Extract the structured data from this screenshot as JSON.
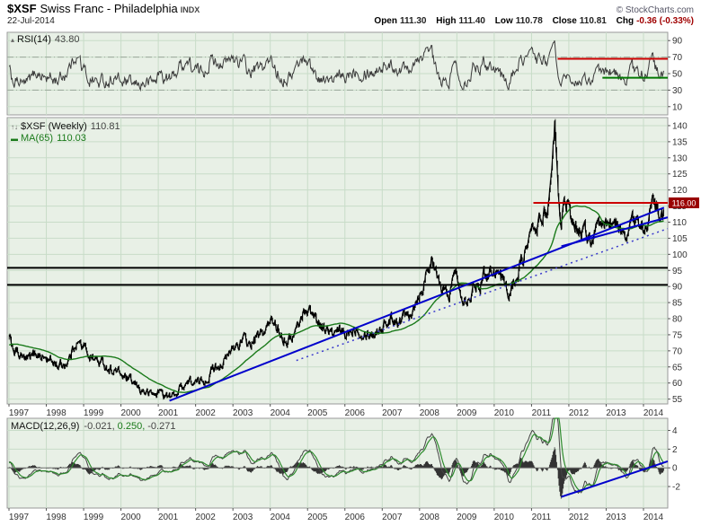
{
  "header": {
    "symbol": "$XSF",
    "name": "Swiss Franc - Philadelphia",
    "exchange": "INDX",
    "date": "22-Jul-2014",
    "copyright": "© StockCharts.com",
    "quote": {
      "open_label": "Open",
      "open": "111.30",
      "high_label": "High",
      "high": "111.40",
      "low_label": "Low",
      "low": "110.78",
      "close_label": "Close",
      "close": "110.81",
      "chg_label": "Chg",
      "chg": "-0.36 (-0.33%)"
    }
  },
  "icons": {
    "rsi_indicator": "▴",
    "price_series": "↑↓",
    "ma_line": "▬"
  },
  "panels": {
    "rsi": {
      "label": "RSI(14)",
      "value": "43.80"
    },
    "price": {
      "label": "$XSF (Weekly)",
      "value": "110.81",
      "ma_label": "MA(65)",
      "ma_value": "110.03"
    },
    "macd": {
      "label": "MACD(12,26,9)",
      "macd_value": "-0.021,",
      "signal_value": "0.250,",
      "hist_value": "-0.271"
    }
  },
  "chart_data": {
    "type": "line",
    "title": "$XSF Swiss Franc - Philadelphia INDX, Weekly, 1997-2014",
    "x_range": [
      1997.0,
      2014.65
    ],
    "x_ticks": [
      1997,
      1998,
      1999,
      2000,
      2001,
      2002,
      2003,
      2004,
      2005,
      2006,
      2007,
      2008,
      2009,
      2010,
      2011,
      2012,
      2013,
      2014
    ],
    "weekly_noise": 0.02,
    "colors": {
      "panel_bg": "#e8f0e6",
      "grid": "#c8dcc8",
      "panel_border": "#999999",
      "axis_text": "#333333",
      "price": "#000000",
      "ma": "#1a7a1a",
      "rsi": "#3a3a3a",
      "macd_line": "#444444",
      "signal": "#2e8b2e",
      "hist": "#333333",
      "blue": "#0000cc",
      "red": "#cc0000",
      "black": "#000000",
      "band_dash": "#9aa89a",
      "zero": "#777777",
      "red_box": "#990000"
    },
    "panels": [
      {
        "id": "rsi",
        "indicator": "RSI(14)",
        "last": 43.8,
        "ylim": [
          0,
          100
        ],
        "yticks": [
          90,
          70,
          50,
          30,
          10
        ],
        "overlays": [
          {
            "type": "hline",
            "y": 70,
            "style": "dashdot",
            "color": "#9aa89a",
            "w": 1
          },
          {
            "type": "hline",
            "y": 30,
            "style": "dashdot",
            "color": "#9aa89a",
            "w": 1
          },
          {
            "type": "segment",
            "x1": 2011.7,
            "y1": 68,
            "x2": 2014.65,
            "y2": 68,
            "color": "#cc0000",
            "w": 2
          },
          {
            "type": "segment",
            "x1": 2012.9,
            "y1": 45,
            "x2": 2014.65,
            "y2": 45,
            "color": "#007700",
            "w": 2
          }
        ]
      },
      {
        "id": "price",
        "series_name": "$XSF weekly close",
        "last": 110.81,
        "ma_period": 65,
        "ma_last": 110.03,
        "ylim": [
          53.5,
          142.5
        ],
        "yticks": [
          140,
          135,
          130,
          125,
          120,
          115,
          110,
          105,
          100,
          95,
          90,
          85,
          80,
          75,
          70,
          65,
          60,
          55
        ],
        "overlays": [
          {
            "type": "hline",
            "y": 95.8,
            "color": "#000000",
            "w": 2
          },
          {
            "type": "hline",
            "y": 90.5,
            "color": "#000000",
            "w": 2
          },
          {
            "type": "segment",
            "x1": 2004.7,
            "y1": 67.0,
            "x2": 2014.65,
            "y2": 108.0,
            "color": "#3a3acc",
            "w": 1.5,
            "style": "dot"
          },
          {
            "type": "segment",
            "x1": 2001.3,
            "y1": 54.5,
            "x2": 2014.55,
            "y2": 114.5,
            "color": "#0000cc",
            "w": 2
          },
          {
            "type": "segment",
            "x1": 2011.8,
            "y1": 102.5,
            "x2": 2014.65,
            "y2": 111.5,
            "color": "#0000cc",
            "w": 2
          },
          {
            "type": "segment",
            "x1": 2011.05,
            "y1": 116.0,
            "x2": 2014.65,
            "y2": 116.0,
            "color": "#cc0000",
            "w": 2,
            "axis_label": "116.00"
          }
        ]
      },
      {
        "id": "macd",
        "indicator": "MACD(12,26,9)",
        "last": [
          -0.021,
          0.25,
          -0.271
        ],
        "ylim": [
          -4.3,
          5.3
        ],
        "yticks": [
          4,
          2,
          0,
          -2
        ],
        "overlays": [
          {
            "type": "hline",
            "y": 0,
            "color": "#777777",
            "w": 1
          },
          {
            "type": "segment",
            "x1": 2011.8,
            "y1": -3.1,
            "x2": 2014.65,
            "y2": 0.7,
            "color": "#0000cc",
            "w": 2
          }
        ]
      }
    ],
    "price_anchors": [
      [
        1995.6,
        69.0
      ],
      [
        1995.9,
        69.8
      ],
      [
        1996.2,
        71.0
      ],
      [
        1996.5,
        72.2
      ],
      [
        1996.8,
        72.8
      ],
      [
        1997.0,
        72.4
      ],
      [
        1997.15,
        70.2
      ],
      [
        1997.3,
        68.4
      ],
      [
        1997.45,
        66.6
      ],
      [
        1997.6,
        67.6
      ],
      [
        1997.75,
        69.6
      ],
      [
        1997.9,
        68.2
      ],
      [
        1998.05,
        67.0
      ],
      [
        1998.2,
        66.4
      ],
      [
        1998.35,
        65.4
      ],
      [
        1998.5,
        66.2
      ],
      [
        1998.65,
        68.4
      ],
      [
        1998.8,
        73.6
      ],
      [
        1998.95,
        71.4
      ],
      [
        1999.1,
        69.6
      ],
      [
        1999.25,
        68.0
      ],
      [
        1999.4,
        66.4
      ],
      [
        1999.55,
        65.6
      ],
      [
        1999.7,
        64.6
      ],
      [
        1999.85,
        64.0
      ],
      [
        2000.0,
        62.4
      ],
      [
        2000.15,
        61.0
      ],
      [
        2000.3,
        59.6
      ],
      [
        2000.45,
        58.4
      ],
      [
        2000.6,
        57.6
      ],
      [
        2000.75,
        56.6
      ],
      [
        2000.9,
        56.2
      ],
      [
        2001.05,
        57.6
      ],
      [
        2001.2,
        56.0
      ],
      [
        2001.35,
        55.4
      ],
      [
        2001.5,
        57.2
      ],
      [
        2001.65,
        59.6
      ],
      [
        2001.8,
        60.6
      ],
      [
        2001.95,
        60.0
      ],
      [
        2002.1,
        59.6
      ],
      [
        2002.25,
        61.2
      ],
      [
        2002.4,
        63.6
      ],
      [
        2002.55,
        65.6
      ],
      [
        2002.7,
        66.6
      ],
      [
        2002.85,
        67.6
      ],
      [
        2003.0,
        70.6
      ],
      [
        2003.15,
        72.6
      ],
      [
        2003.3,
        73.0
      ],
      [
        2003.45,
        71.6
      ],
      [
        2003.6,
        73.6
      ],
      [
        2003.75,
        74.6
      ],
      [
        2003.9,
        77.0
      ],
      [
        2004.05,
        79.0
      ],
      [
        2004.2,
        77.6
      ],
      [
        2004.35,
        75.0
      ],
      [
        2004.5,
        73.6
      ],
      [
        2004.65,
        75.6
      ],
      [
        2004.8,
        79.2
      ],
      [
        2004.95,
        83.6
      ],
      [
        2005.1,
        82.0
      ],
      [
        2005.25,
        79.6
      ],
      [
        2005.4,
        77.6
      ],
      [
        2005.55,
        76.0
      ],
      [
        2005.7,
        74.6
      ],
      [
        2005.85,
        75.6
      ],
      [
        2006.0,
        74.6
      ],
      [
        2006.15,
        76.6
      ],
      [
        2006.3,
        78.0
      ],
      [
        2006.45,
        77.0
      ],
      [
        2006.6,
        76.4
      ],
      [
        2006.75,
        75.6
      ],
      [
        2006.9,
        77.0
      ],
      [
        2007.05,
        78.6
      ],
      [
        2007.2,
        79.6
      ],
      [
        2007.35,
        80.6
      ],
      [
        2007.5,
        80.0
      ],
      [
        2007.65,
        81.6
      ],
      [
        2007.8,
        84.0
      ],
      [
        2007.95,
        87.6
      ],
      [
        2008.1,
        91.0
      ],
      [
        2008.22,
        97.0
      ],
      [
        2008.3,
        99.5
      ],
      [
        2008.4,
        94.0
      ],
      [
        2008.55,
        90.0
      ],
      [
        2008.7,
        87.0
      ],
      [
        2008.82,
        89.0
      ],
      [
        2008.95,
        94.5
      ],
      [
        2009.1,
        89.6
      ],
      [
        2009.25,
        87.0
      ],
      [
        2009.4,
        89.6
      ],
      [
        2009.55,
        91.6
      ],
      [
        2009.7,
        93.0
      ],
      [
        2009.85,
        95.0
      ],
      [
        2010.0,
        96.6
      ],
      [
        2010.15,
        93.6
      ],
      [
        2010.3,
        90.0
      ],
      [
        2010.42,
        88.4
      ],
      [
        2010.55,
        92.0
      ],
      [
        2010.7,
        97.0
      ],
      [
        2010.85,
        102.0
      ],
      [
        2011.0,
        106.0
      ],
      [
        2011.15,
        109.0
      ],
      [
        2011.3,
        112.0
      ],
      [
        2011.45,
        116.0
      ],
      [
        2011.55,
        122.0
      ],
      [
        2011.62,
        139.5
      ],
      [
        2011.7,
        121.0
      ],
      [
        2011.77,
        106.0
      ],
      [
        2011.85,
        112.0
      ],
      [
        2011.95,
        114.5
      ],
      [
        2012.1,
        110.6
      ],
      [
        2012.25,
        109.0
      ],
      [
        2012.4,
        106.6
      ],
      [
        2012.55,
        104.6
      ],
      [
        2012.7,
        105.6
      ],
      [
        2012.85,
        106.6
      ],
      [
        2013.0,
        108.6
      ],
      [
        2013.15,
        110.6
      ],
      [
        2013.3,
        107.6
      ],
      [
        2013.45,
        106.0
      ],
      [
        2013.6,
        108.6
      ],
      [
        2013.75,
        110.0
      ],
      [
        2013.9,
        107.6
      ],
      [
        2014.05,
        110.6
      ],
      [
        2014.2,
        113.4
      ],
      [
        2014.3,
        115.0
      ],
      [
        2014.4,
        113.0
      ],
      [
        2014.5,
        111.5
      ],
      [
        2014.55,
        110.8
      ]
    ]
  }
}
